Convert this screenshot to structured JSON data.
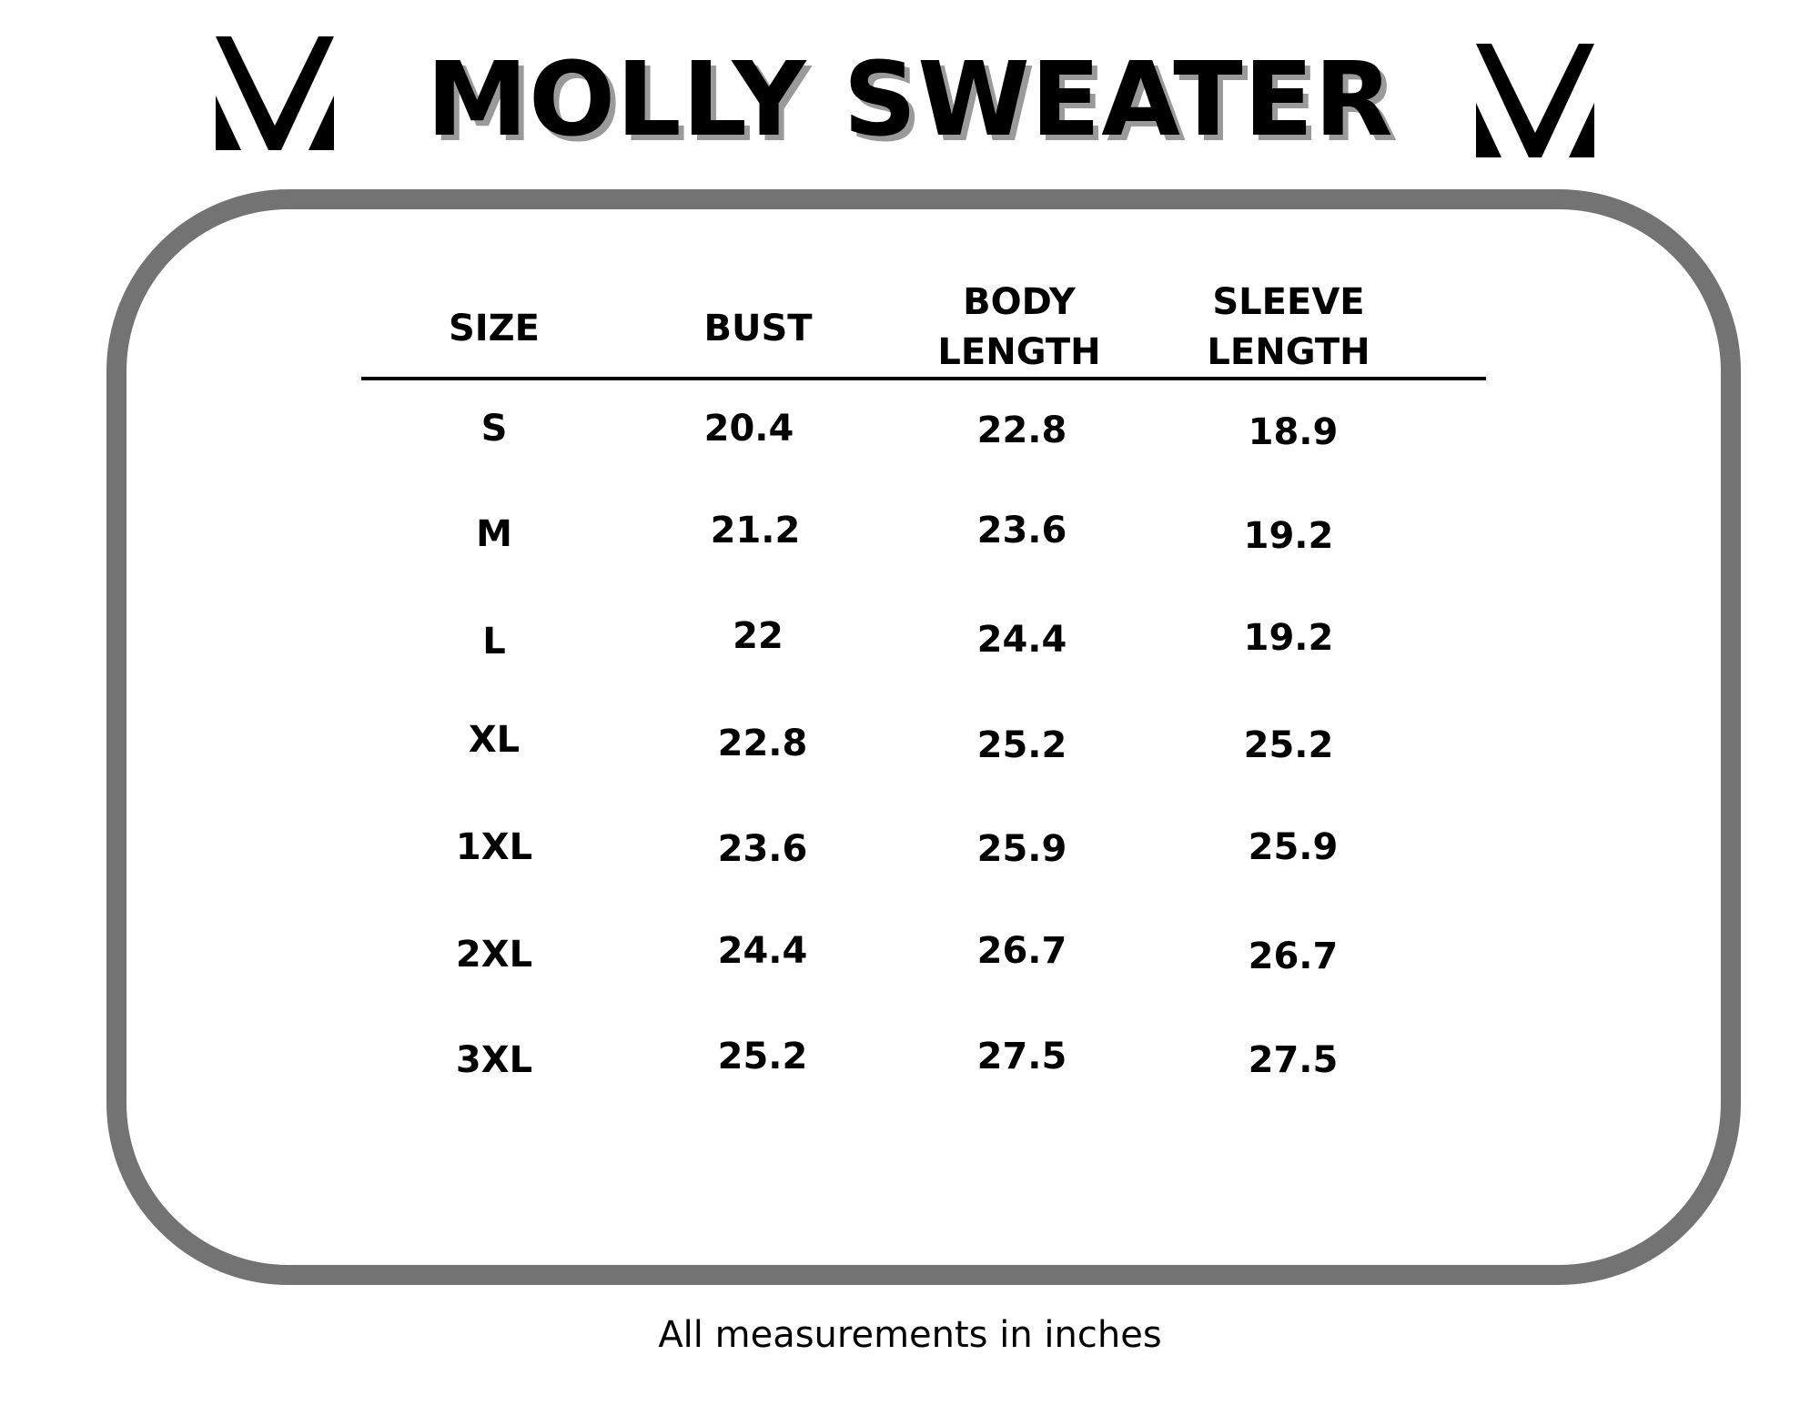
{
  "title": "MOLLY SWEATER",
  "logo": {
    "icon": "brand-v-logo",
    "color": "#000000"
  },
  "frame_color": "#737373",
  "table": {
    "headers": [
      {
        "line1": "SIZE",
        "line2": ""
      },
      {
        "line1": "BUST",
        "line2": ""
      },
      {
        "line1": "BODY",
        "line2": "LENGTH"
      },
      {
        "line1": "SLEEVE",
        "line2": "LENGTH"
      }
    ],
    "rows": [
      {
        "size": "S",
        "bust": "20.4",
        "body_length": "22.8",
        "sleeve_length": "18.9"
      },
      {
        "size": "M",
        "bust": "21.2",
        "body_length": "23.6",
        "sleeve_length": "19.2"
      },
      {
        "size": "L",
        "bust": "22",
        "body_length": "24.4",
        "sleeve_length": "19.2"
      },
      {
        "size": "XL",
        "bust": "22.8",
        "body_length": "25.2",
        "sleeve_length": "25.2"
      },
      {
        "size": "1XL",
        "bust": "23.6",
        "body_length": "25.9",
        "sleeve_length": "25.9"
      },
      {
        "size": "2XL",
        "bust": "24.4",
        "body_length": "26.7",
        "sleeve_length": "26.7"
      },
      {
        "size": "3XL",
        "bust": "25.2",
        "body_length": "27.5",
        "sleeve_length": "27.5"
      }
    ]
  },
  "footer_note": "All measurements in inches"
}
